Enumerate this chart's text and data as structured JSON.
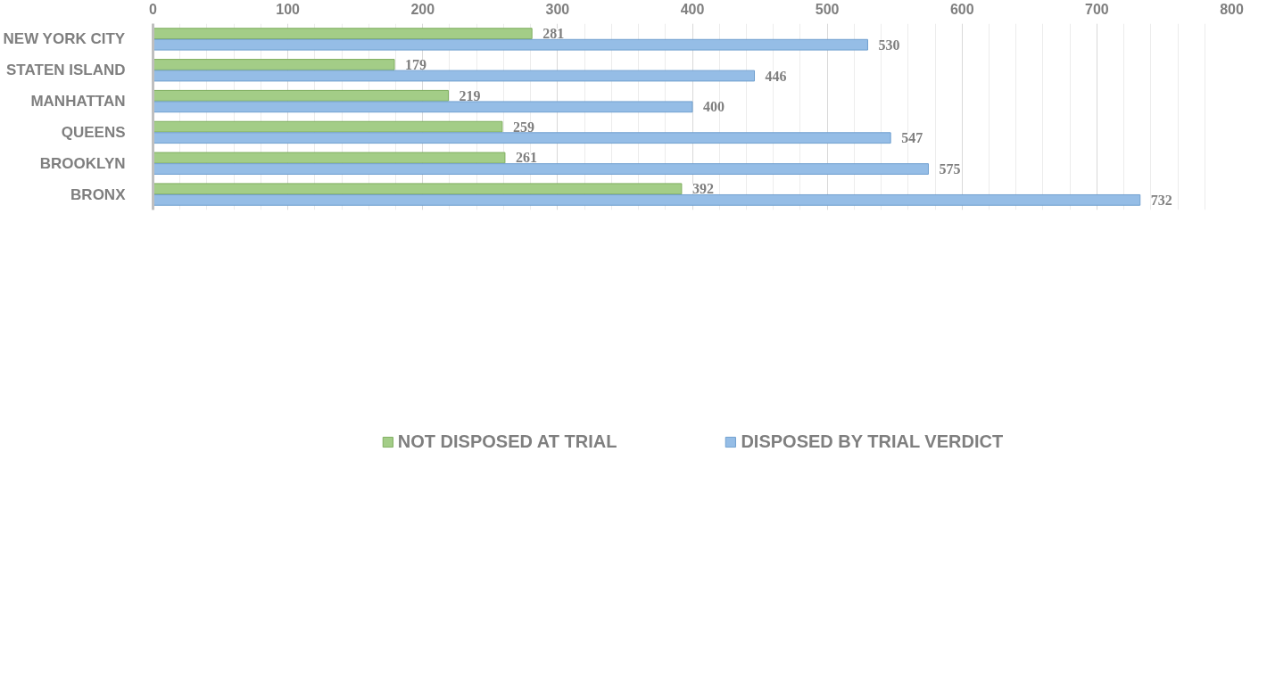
{
  "chart_data": {
    "type": "bar",
    "orientation": "horizontal",
    "categories": [
      "NEW YORK CITY",
      "STATEN ISLAND",
      "MANHATTAN",
      "QUEENS",
      "BROOKLYN",
      "BRONX"
    ],
    "series": [
      {
        "name": "NOT DISPOSED AT TRIAL",
        "color": "#a3cd87",
        "values": [
          281,
          179,
          219,
          259,
          261,
          392
        ]
      },
      {
        "name": "DISPOSED BY TRIAL VERDICT",
        "color": "#95bde6",
        "values": [
          530,
          446,
          400,
          547,
          575,
          732
        ]
      }
    ],
    "xlim": [
      0,
      800
    ],
    "xticks": [
      0,
      100,
      200,
      300,
      400,
      500,
      600,
      700,
      800
    ],
    "grid": "x",
    "legend": "bottom",
    "data_labels": true
  }
}
